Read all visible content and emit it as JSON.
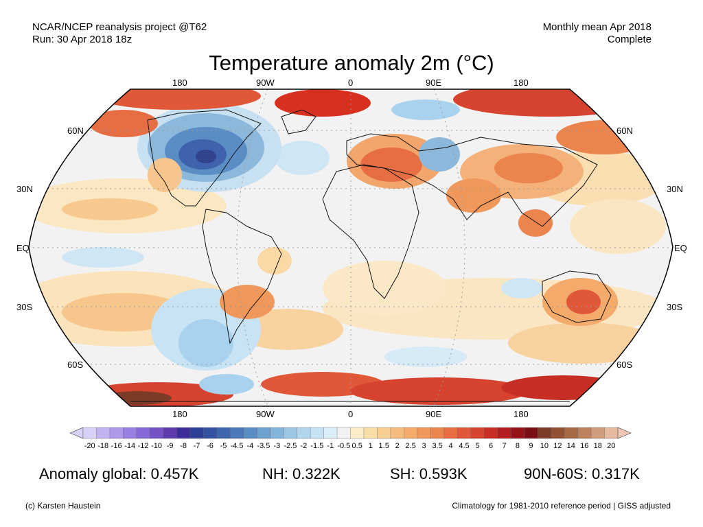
{
  "header": {
    "left_line1": "NCAR/NCEP reanalysis project @T62",
    "left_line2": "Run: 30 Apr 2018 18z",
    "right_line1": "Monthly mean Apr 2018",
    "right_line2": "Complete"
  },
  "title": "Temperature anomaly 2m (°C)",
  "map": {
    "lon_labels_top": [
      "180",
      "90W",
      "0",
      "90E",
      "180"
    ],
    "lon_labels_bottom": [
      "180",
      "90W",
      "0",
      "90E",
      "180"
    ],
    "lat_labels_left": [
      "60N",
      "30N",
      "EQ",
      "30S",
      "60S"
    ],
    "lat_labels_right": [
      "60N",
      "30N",
      "EQ",
      "30S",
      "60S"
    ],
    "colors": {
      "ocean_neutral": "#f2f2f2",
      "warm": "#f4a05c",
      "hot": "#d8301e",
      "cold": "#3f62ad",
      "cool": "#a9d2ee"
    }
  },
  "colorbar": {
    "labels": [
      "-20",
      "-18",
      "-16",
      "-14",
      "-12",
      "-10",
      "-9",
      "-8",
      "-7",
      "-6",
      "-5",
      "-4.5",
      "-4",
      "-3.5",
      "-3",
      "-2.5",
      "-2",
      "-1.5",
      "-1",
      "-0.5",
      "0.5",
      "1",
      "1.5",
      "2",
      "2.5",
      "3",
      "3.5",
      "4",
      "4.5",
      "5",
      "6",
      "7",
      "8",
      "9",
      "10",
      "12",
      "14",
      "16",
      "18",
      "20"
    ],
    "colors": [
      "#d8d0f6",
      "#c2b2f0",
      "#ad98ea",
      "#9a7fe2",
      "#8668d6",
      "#7452c6",
      "#5f3bb0",
      "#3d2d9a",
      "#2e3f96",
      "#33529f",
      "#3f66ad",
      "#4a78b8",
      "#5a8dc4",
      "#6fa1cf",
      "#85b4da",
      "#9bc6e4",
      "#b1d6ec",
      "#c6e3f3",
      "#dbeef8",
      "#f2f2f2",
      "#fbedc7",
      "#f9deaa",
      "#f7cf91",
      "#f5bd7d",
      "#f3aa6b",
      "#f0985b",
      "#ec844d",
      "#e76e42",
      "#e05838",
      "#d6432f",
      "#c72f26",
      "#b21d1f",
      "#941419",
      "#7a0e14",
      "#7c3b26",
      "#915234",
      "#a66a47",
      "#bb825d",
      "#d09d7a",
      "#e4b99d"
    ],
    "end_low": "#d9d2f8",
    "end_high": "#f2c8b4"
  },
  "stats": {
    "global": "Anomaly global: 0.457K",
    "nh": "NH: 0.322K",
    "sh": "SH: 0.593K",
    "arctic": "90N-60S: 0.317K"
  },
  "footer": {
    "credit": "(c) Karsten Haustein",
    "note": "Climatology for 1981-2010 reference period | GISS adjusted"
  }
}
